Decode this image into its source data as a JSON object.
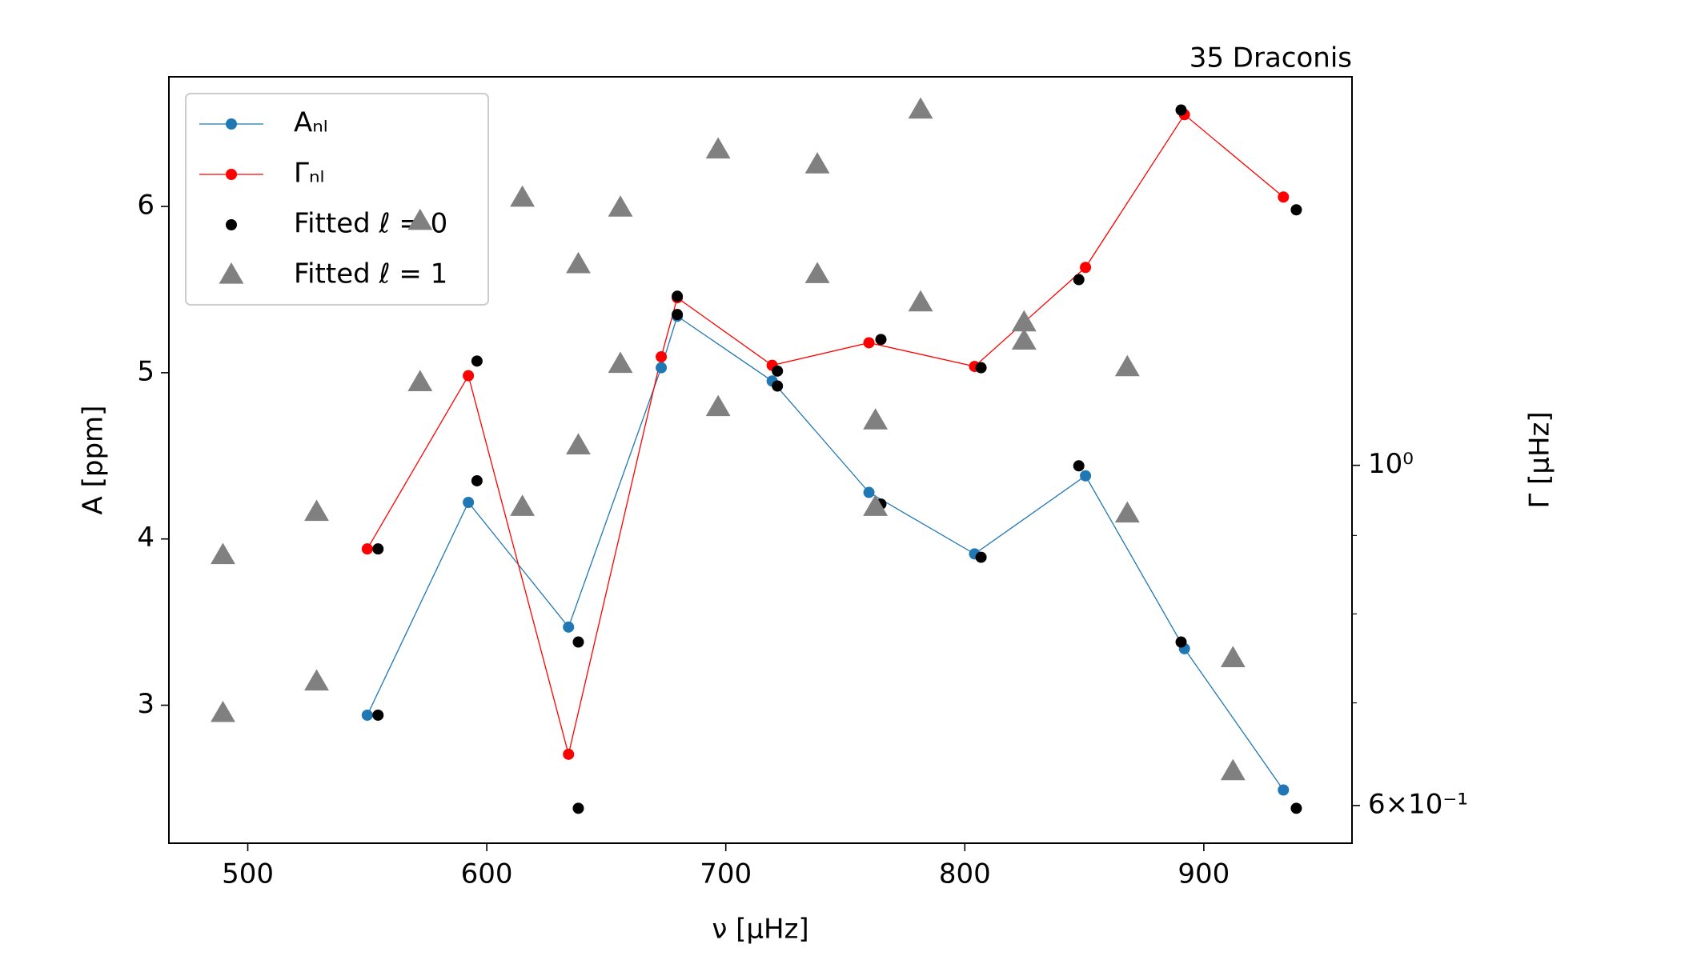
{
  "chart_data": {
    "type": "line-scatter",
    "title": "35 Draconis",
    "xlabel": "ν [μHz]",
    "ylabel": "A [ppm]",
    "y2label": "Γ [μHz]",
    "xlim": [
      467,
      962
    ],
    "xticks": [
      500,
      600,
      700,
      800,
      900
    ],
    "ylim": [
      2.17,
      6.78
    ],
    "yticks": [
      3,
      4,
      5,
      6
    ],
    "y2lim": [
      0.567,
      1.792
    ],
    "y2log": true,
    "y2ticks": [
      {
        "value": 1,
        "label": "10⁰"
      },
      {
        "value": 0.6,
        "label": "6×10⁻¹"
      }
    ],
    "y2minorticks": [
      0.7,
      0.8,
      0.9
    ],
    "legend": "upper left",
    "series": [
      {
        "name": "Aₙₗ",
        "color": "#1f77b4",
        "marker": "circle",
        "line": true,
        "axis": "y",
        "x": [
          550.0,
          592.3,
          634.2,
          673.0,
          679.7,
          719.4,
          759.9,
          804.1,
          850.5,
          891.9,
          933.3
        ],
        "values": [
          2.94,
          4.22,
          3.47,
          5.03,
          5.34,
          4.95,
          4.28,
          3.91,
          4.38,
          3.34,
          2.49
        ]
      },
      {
        "name": "Γₙₗ",
        "color": "#ff0000",
        "marker": "circle",
        "line": true,
        "axis": "y2",
        "x": [
          550.0,
          592.3,
          634.2,
          673.0,
          679.7,
          719.4,
          759.9,
          804.1,
          850.5,
          891.9,
          933.3
        ],
        "values": [
          0.882,
          1.144,
          0.648,
          1.177,
          1.286,
          1.162,
          1.202,
          1.16,
          1.346,
          1.693,
          1.496
        ]
      },
      {
        "name": "Fitted ℓ = 0",
        "color": "#000000",
        "marker": "circle",
        "line": false,
        "axis": "y",
        "x": [
          554.5,
          554.5,
          595.9,
          595.9,
          638.3,
          638.3,
          679.7,
          679.7,
          721.6,
          721.6,
          764.9,
          764.9,
          806.8,
          806.8,
          847.7,
          847.7,
          890.5,
          890.5,
          938.7,
          938.7
        ],
        "values": [
          3.94,
          2.94,
          5.07,
          4.35,
          2.38,
          3.38,
          5.46,
          5.35,
          5.01,
          4.92,
          5.2,
          4.21,
          5.03,
          3.89,
          5.56,
          4.44,
          6.58,
          3.38,
          5.98,
          2.38
        ]
      },
      {
        "name": "Fitted ℓ = 1",
        "color": "#808080",
        "marker": "triangle",
        "line": false,
        "axis": "y",
        "x": [
          489.6,
          489.6,
          528.8,
          528.8,
          572.1,
          572.1,
          614.9,
          614.9,
          638.3,
          638.3,
          655.9,
          655.9,
          696.8,
          696.8,
          738.3,
          738.3,
          762.6,
          762.6,
          781.5,
          781.5,
          824.8,
          824.8,
          868.0,
          868.0,
          912.2,
          912.2
        ],
        "values": [
          3.9,
          2.95,
          4.16,
          3.14,
          5.91,
          4.94,
          6.05,
          4.19,
          5.65,
          4.56,
          5.99,
          5.05,
          6.34,
          4.79,
          6.25,
          5.59,
          4.71,
          4.19,
          6.58,
          5.42,
          5.3,
          5.19,
          5.03,
          4.15,
          3.28,
          2.6
        ]
      }
    ]
  }
}
